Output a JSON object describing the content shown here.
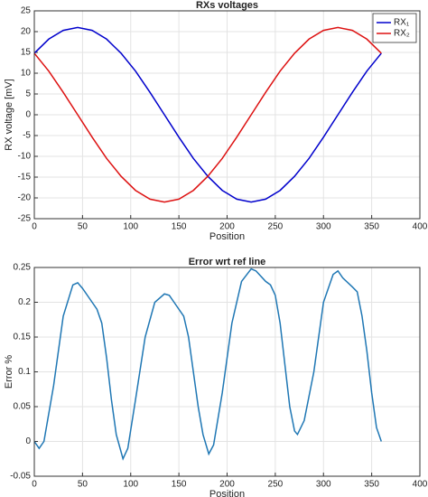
{
  "chart_data": [
    {
      "type": "line",
      "title": "RXs voltages",
      "x_label": "Position",
      "y_label": "RX voltage [mV]",
      "x": [
        0,
        15,
        30,
        45,
        60,
        75,
        90,
        105,
        120,
        135,
        150,
        165,
        180,
        195,
        210,
        225,
        240,
        255,
        270,
        285,
        300,
        315,
        330,
        345,
        360
      ],
      "series": [
        {
          "name": "RX₁",
          "color": "#0000cc",
          "values": [
            14.8,
            18.2,
            20.3,
            21,
            20.3,
            18.2,
            14.8,
            10.5,
            5.4,
            0,
            -5.4,
            -10.5,
            -14.8,
            -18.2,
            -20.3,
            -21,
            -20.3,
            -18.2,
            -14.8,
            -10.5,
            -5.4,
            0,
            5.4,
            10.5,
            14.8
          ]
        },
        {
          "name": "RX₂",
          "color": "#dd1111",
          "values": [
            14.8,
            10.5,
            5.4,
            0,
            -5.4,
            -10.5,
            -14.8,
            -18.2,
            -20.3,
            -21,
            -20.3,
            -18.2,
            -14.8,
            -10.5,
            -5.4,
            0,
            5.4,
            10.5,
            14.8,
            18.2,
            20.3,
            21,
            20.3,
            18.2,
            14.8
          ]
        }
      ],
      "xlim": [
        0,
        400
      ],
      "xticks": [
        0,
        50,
        100,
        150,
        200,
        250,
        300,
        350,
        400
      ],
      "ylim": [
        -25,
        25
      ],
      "yticks": [
        -25,
        -20,
        -15,
        -10,
        -5,
        0,
        5,
        10,
        15,
        20,
        25
      ],
      "grid": true,
      "legend": "upper right"
    },
    {
      "type": "line",
      "title": "Error wrt ref line",
      "x_label": "Position",
      "y_label": "Error %",
      "x": [
        0,
        5,
        10,
        20,
        30,
        40,
        45,
        50,
        60,
        65,
        70,
        75,
        80,
        85,
        92,
        97,
        105,
        115,
        125,
        135,
        140,
        145,
        155,
        160,
        165,
        170,
        175,
        181,
        186,
        195,
        205,
        215,
        225,
        230,
        240,
        245,
        250,
        255,
        260,
        265,
        270,
        273,
        280,
        290,
        300,
        310,
        315,
        320,
        330,
        335,
        340,
        345,
        350,
        355,
        360
      ],
      "series": [
        {
          "name": "Error",
          "color": "#1f77b4",
          "values": [
            0,
            -0.01,
            0,
            0.08,
            0.18,
            0.225,
            0.228,
            0.22,
            0.2,
            0.19,
            0.17,
            0.12,
            0.06,
            0.01,
            -0.025,
            -0.01,
            0.06,
            0.15,
            0.2,
            0.212,
            0.21,
            0.2,
            0.18,
            0.15,
            0.1,
            0.05,
            0.01,
            -0.018,
            -0.005,
            0.07,
            0.17,
            0.23,
            0.248,
            0.245,
            0.23,
            0.225,
            0.21,
            0.17,
            0.11,
            0.05,
            0.015,
            0.01,
            0.03,
            0.1,
            0.2,
            0.24,
            0.245,
            0.235,
            0.222,
            0.215,
            0.18,
            0.13,
            0.07,
            0.02,
            0
          ]
        }
      ],
      "xlim": [
        0,
        400
      ],
      "xticks": [
        0,
        50,
        100,
        150,
        200,
        250,
        300,
        350,
        400
      ],
      "ylim": [
        -0.05,
        0.25
      ],
      "yticks": [
        -0.05,
        0,
        0.05,
        0.1,
        0.15,
        0.2,
        0.25
      ],
      "grid": true
    }
  ]
}
